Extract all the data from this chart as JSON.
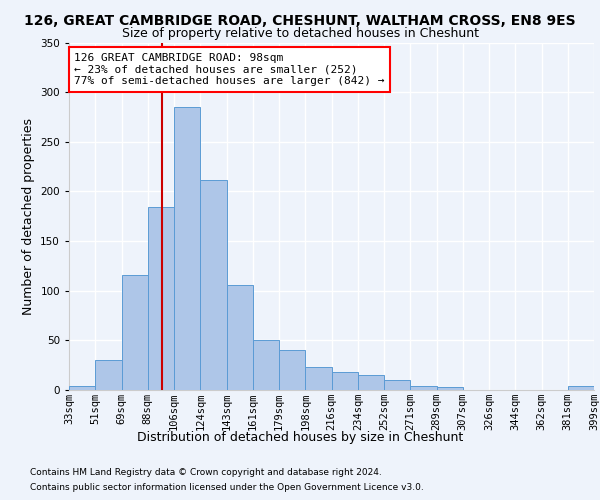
{
  "title1": "126, GREAT CAMBRIDGE ROAD, CHESHUNT, WALTHAM CROSS, EN8 9ES",
  "title2": "Size of property relative to detached houses in Cheshunt",
  "xlabel": "Distribution of detached houses by size in Cheshunt",
  "ylabel": "Number of detached properties",
  "bin_labels": [
    "33sqm",
    "51sqm",
    "69sqm",
    "88sqm",
    "106sqm",
    "124sqm",
    "143sqm",
    "161sqm",
    "179sqm",
    "198sqm",
    "216sqm",
    "234sqm",
    "252sqm",
    "271sqm",
    "289sqm",
    "307sqm",
    "326sqm",
    "344sqm",
    "362sqm",
    "381sqm",
    "399sqm"
  ],
  "bar_heights": [
    4,
    30,
    116,
    184,
    285,
    212,
    106,
    50,
    40,
    23,
    18,
    15,
    10,
    4,
    3,
    0,
    0,
    0,
    0,
    4
  ],
  "bar_color": "#aec6e8",
  "bar_edge_color": "#5b9bd5",
  "annotation_text": "126 GREAT CAMBRIDGE ROAD: 98sqm\n← 23% of detached houses are smaller (252)\n77% of semi-detached houses are larger (842) →",
  "annotation_box_color": "white",
  "annotation_box_edge": "red",
  "footnote1": "Contains HM Land Registry data © Crown copyright and database right 2024.",
  "footnote2": "Contains public sector information licensed under the Open Government Licence v3.0.",
  "bg_color": "#eef3fb",
  "plot_bg_color": "#eef3fb",
  "ylim": [
    0,
    350
  ],
  "yticks": [
    0,
    50,
    100,
    150,
    200,
    250,
    300,
    350
  ],
  "grid_color": "#ffffff",
  "title1_fontsize": 10,
  "title2_fontsize": 9,
  "axis_label_fontsize": 9,
  "ylabel_fontsize": 9,
  "tick_fontsize": 7.5,
  "annotation_fontsize": 8,
  "bin_vals": [
    33,
    51,
    69,
    88,
    106,
    124,
    143,
    161,
    179,
    198,
    216,
    234,
    252,
    271,
    289,
    307,
    326,
    344,
    362,
    381,
    399
  ],
  "prop_size": 98
}
